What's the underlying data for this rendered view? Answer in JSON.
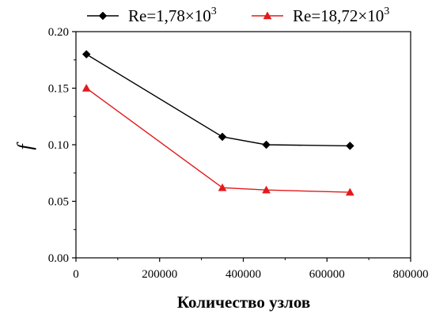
{
  "chart_data": {
    "type": "line",
    "title": "",
    "xlabel": "Количество узлов",
    "ylabel": "f",
    "xlim": [
      0,
      800000
    ],
    "ylim": [
      0.0,
      0.2
    ],
    "x_ticks": [
      0,
      200000,
      400000,
      600000,
      800000
    ],
    "x_tick_labels": [
      "0",
      "200000",
      "400000",
      "600000",
      "800000"
    ],
    "y_ticks": [
      0.0,
      0.05,
      0.1,
      0.15,
      0.2
    ],
    "y_tick_labels": [
      "0.00",
      "0.05",
      "0.10",
      "0.15",
      "0.20"
    ],
    "grid": false,
    "legend_position": "top",
    "series": [
      {
        "name": "Re=1,78×10",
        "name_sup": "3",
        "color": "#000000",
        "marker": "diamond",
        "x": [
          25000,
          350000,
          455000,
          655000
        ],
        "y": [
          0.18,
          0.107,
          0.1,
          0.099
        ]
      },
      {
        "name": "Re=18,72×10",
        "name_sup": "3",
        "color": "#e31a1c",
        "marker": "triangle",
        "x": [
          25000,
          350000,
          455000,
          655000
        ],
        "y": [
          0.15,
          0.062,
          0.06,
          0.058
        ]
      }
    ]
  }
}
